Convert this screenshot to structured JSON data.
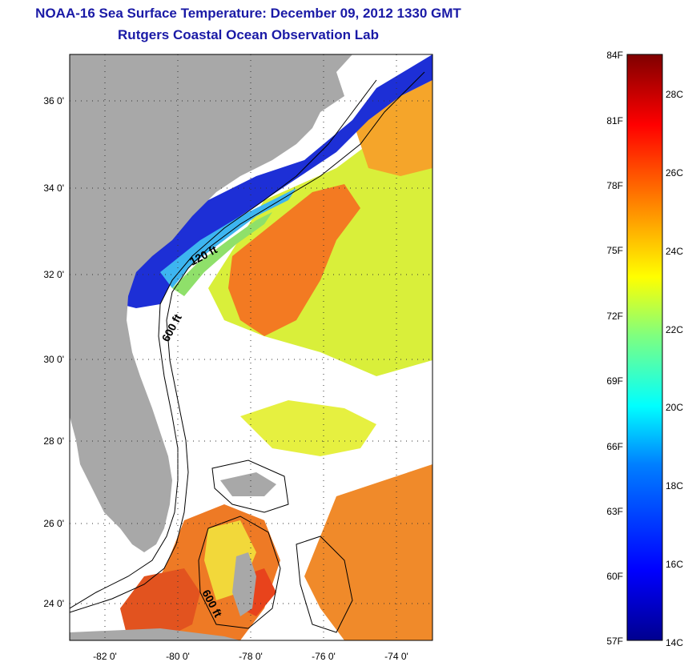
{
  "title": {
    "line1": "NOAA-16 Sea Surface Temperature:  December 09, 2012 1330 GMT",
    "line2": "Rutgers Coastal Ocean Observation Lab"
  },
  "map": {
    "lat_labels": [
      "36 0'",
      "34 0'",
      "32 0'",
      "30 0'",
      "28 0'",
      "26 0'",
      "24 0'"
    ],
    "lon_labels": [
      "-82 0'",
      "-80 0'",
      "-78 0'",
      "-76 0'",
      "-74 0'"
    ],
    "contour_labels": [
      "120 ft",
      "600 ft",
      "600 ft"
    ],
    "colors": {
      "land": "#a8a8a8",
      "cloud": "#ffffff",
      "frame": "#000000"
    }
  },
  "colorbar": {
    "f_labels": [
      "84F",
      "81F",
      "78F",
      "75F",
      "72F",
      "69F",
      "66F",
      "63F",
      "60F",
      "57F"
    ],
    "c_labels": [
      "28C",
      "26C",
      "24C",
      "22C",
      "20C",
      "18C",
      "16C",
      "14C"
    ],
    "colors": [
      "#00008f",
      "#0000ff",
      "#007fff",
      "#00ffff",
      "#7fff7f",
      "#ffff00",
      "#ff7f00",
      "#ff0000",
      "#7f0000"
    ]
  }
}
